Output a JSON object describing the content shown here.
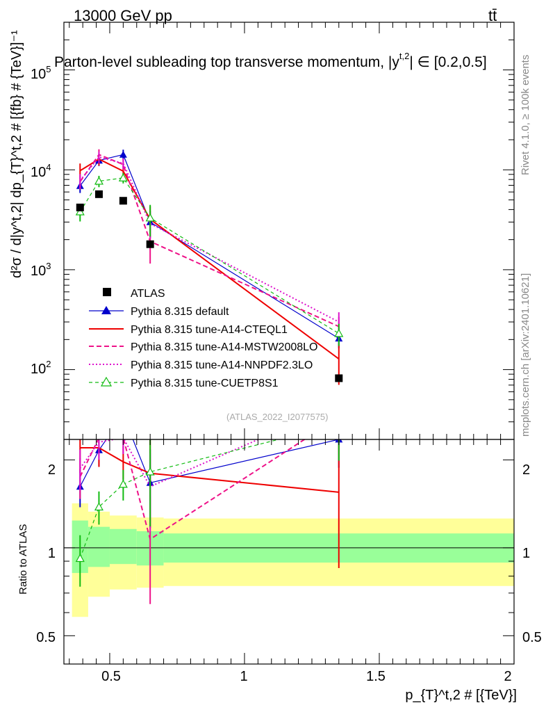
{
  "header": {
    "energy": "13000 GeV pp",
    "process": "tt̄",
    "title": "Parton-level subleading top transverse momentum, |y",
    "title_sup": "t,2",
    "title_tail": "| ∈ [0.2,0.5]",
    "side_rivet": "Rivet 4.1.0, ≥ 100k events",
    "side_mcplots": "mcplots.cern.ch [arXiv:2401.10621]",
    "analysis_id": "(ATLAS_2022_I2077575)"
  },
  "axes": {
    "ylabel_top": "d²σ / d|y^t,2| dp_{T}^t,2 # [{fb} # {TeV}]⁻¹",
    "ylabel_ratio": "Ratio to ATLAS",
    "xlabel": "p_{T}^t,2 # [{TeV}]",
    "top_ticks": [
      "10",
      "10",
      "10",
      "10"
    ],
    "top_exps": [
      "2",
      "3",
      "4",
      "5"
    ],
    "ratio_ticks": [
      "0.5",
      "1",
      "2"
    ],
    "x_ticks": [
      "0.5",
      "1",
      "1.5",
      "2"
    ]
  },
  "legend": {
    "atlas": "ATLAS",
    "default": "Pythia 8.315 default",
    "cteql1": "Pythia 8.315 tune-A14-CTEQL1",
    "mstw": "Pythia 8.315 tune-A14-MSTW2008LO",
    "nnpdf": "Pythia 8.315 tune-A14-NNPDF2.3LO",
    "cuetp8s1": "Pythia 8.315 tune-CUETP8S1"
  },
  "chart_data": {
    "type": "line",
    "xlim": [
      0.33,
      2.0
    ],
    "ylim_top": [
      20,
      300000
    ],
    "ylim_ratio": [
      0.4,
      2.35
    ],
    "log_y_top": true,
    "log_y_ratio": true,
    "x": [
      0.39,
      0.46,
      0.55,
      0.65,
      1.35
    ],
    "bins": [
      [
        0.36,
        0.42
      ],
      [
        0.42,
        0.5
      ],
      [
        0.5,
        0.6
      ],
      [
        0.6,
        0.7
      ],
      [
        0.7,
        2.0
      ]
    ],
    "atlas": {
      "values": [
        4200,
        5700,
        4900,
        1800,
        82
      ],
      "band_stat": [
        [
          0.82,
          1.24
        ],
        [
          0.86,
          1.18
        ],
        [
          0.88,
          1.16
        ],
        [
          0.87,
          1.14
        ],
        [
          0.89,
          1.12
        ]
      ],
      "band_total": [
        [
          0.58,
          1.42
        ],
        [
          0.68,
          1.33
        ],
        [
          0.72,
          1.29
        ],
        [
          0.73,
          1.27
        ],
        [
          0.74,
          1.26
        ]
      ]
    },
    "series": [
      {
        "name": "Pythia 8.315 default",
        "color": "#0000cc",
        "dash": "none",
        "marker": "triangle-filled",
        "values": [
          6900,
          12400,
          14200,
          3000,
          205
        ],
        "ratio": [
          1.62,
          2.16,
          2.85,
          1.67,
          2.35
        ],
        "err": [
          0.15,
          0.12,
          0.12,
          0.3,
          0.2
        ]
      },
      {
        "name": "Pythia 8.315 tune-A14-CTEQL1",
        "color": "#ee0000",
        "dash": "none",
        "marker": "none",
        "values": [
          9800,
          12800,
          9700,
          3200,
          128
        ],
        "ratio": [
          2.2,
          2.2,
          1.97,
          1.8,
          1.55
        ],
        "err": [
          0.18,
          0.14,
          0.13,
          0.35,
          0.45
        ]
      },
      {
        "name": "Pythia 8.315 tune-A14-MSTW2008LO",
        "color": "#ee1188",
        "dash": "7,4",
        "marker": "none",
        "values": [
          7600,
          14200,
          11300,
          1920,
          270
        ],
        "ratio": [
          1.75,
          2.38,
          2.38,
          1.07,
          2.8
        ],
        "err": [
          0.16,
          0.13,
          0.12,
          0.4,
          0.25
        ]
      },
      {
        "name": "Pythia 8.315 tune-A14-NNPDF2.3LO",
        "color": "#dd11cc",
        "dash": "2,3",
        "marker": "none",
        "values": [
          7800,
          13400,
          11600,
          2900,
          300
        ],
        "ratio": [
          1.87,
          2.3,
          2.38,
          1.62,
          3.1
        ],
        "err": [
          0.16,
          0.13,
          0.12,
          0.3,
          0.25
        ]
      },
      {
        "name": "Pythia 8.315 tune-CUETP8S1",
        "color": "#11bb11",
        "dash": "5,4",
        "marker": "triangle-open",
        "values": [
          3800,
          7700,
          8300,
          3300,
          230
        ],
        "ratio": [
          0.92,
          1.38,
          1.65,
          1.82,
          2.65
        ],
        "err": [
          0.2,
          0.13,
          0.12,
          0.35,
          0.25
        ]
      }
    ]
  }
}
